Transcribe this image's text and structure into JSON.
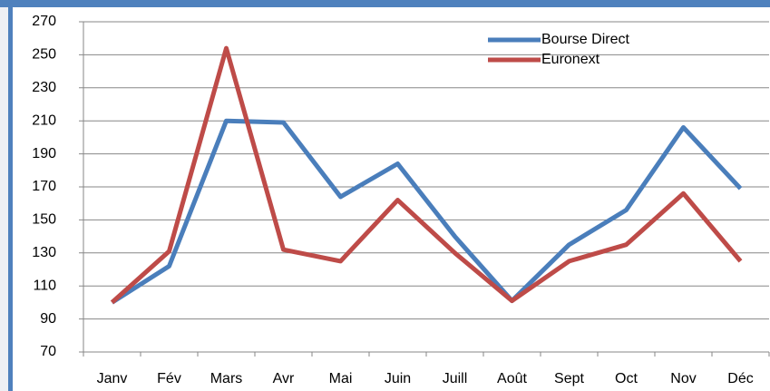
{
  "chart_data": {
    "type": "line",
    "categories": [
      "Janv",
      "Fév",
      "Mars",
      "Avr",
      "Mai",
      "Juin",
      "Juill",
      "Août",
      "Sept",
      "Oct",
      "Nov",
      "Déc"
    ],
    "series": [
      {
        "name": "Bourse Direct",
        "color": "#4a7ebb",
        "values": [
          100,
          122,
          210,
          209,
          164,
          184,
          140,
          101,
          135,
          156,
          206,
          169
        ]
      },
      {
        "name": "Euronext",
        "color": "#be4b48",
        "values": [
          100,
          131,
          254,
          132,
          125,
          162,
          130,
          101,
          125,
          135,
          166,
          125
        ]
      }
    ],
    "ylim": [
      70,
      270
    ],
    "yticks": [
      70,
      90,
      110,
      130,
      150,
      170,
      190,
      210,
      230,
      250,
      270
    ],
    "grid": true,
    "legend": "top-right"
  }
}
